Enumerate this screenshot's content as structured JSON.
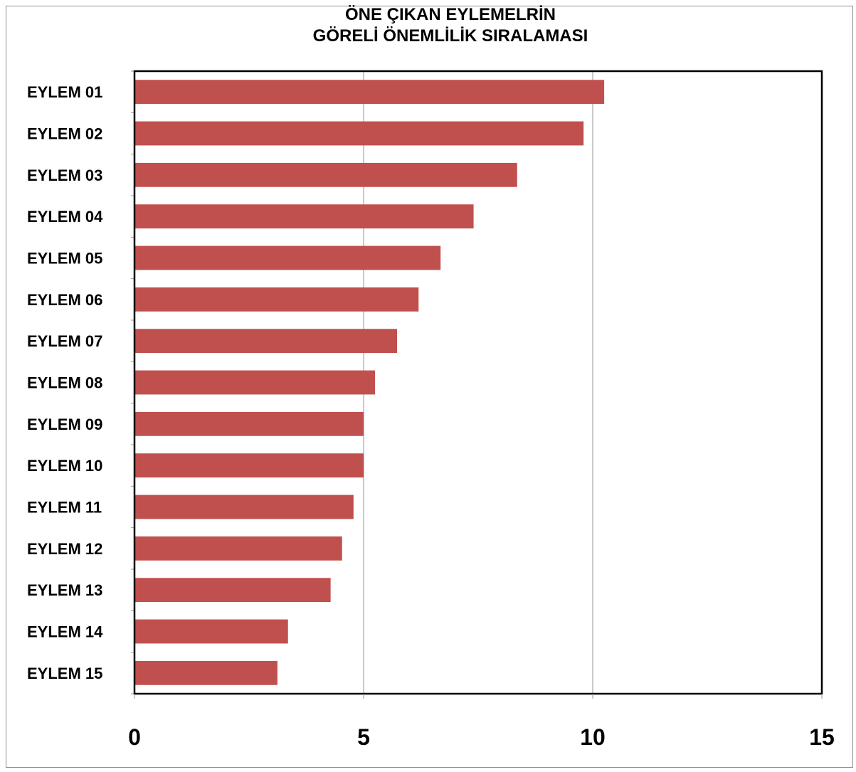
{
  "chart_data": {
    "type": "bar",
    "orientation": "horizontal",
    "title_lines": [
      "ÖNE ÇIKAN EYLEMELRİN",
      "GÖRELİ ÖNEMLİLİK SIRALAMASI"
    ],
    "categories": [
      "EYLEM 01",
      "EYLEM 02",
      "EYLEM 03",
      "EYLEM 04",
      "EYLEM 05",
      "EYLEM 06",
      "EYLEM 07",
      "EYLEM 08",
      "EYLEM 09",
      "EYLEM 10",
      "EYLEM 11",
      "EYLEM 12",
      "EYLEM 13",
      "EYLEM 14",
      "EYLEM 15"
    ],
    "values": [
      10.25,
      9.8,
      8.35,
      7.4,
      6.68,
      6.2,
      5.73,
      5.25,
      5.0,
      5.0,
      4.78,
      4.53,
      4.28,
      3.35,
      3.12
    ],
    "xlim": [
      0,
      15
    ],
    "xticks": [
      "0",
      "5",
      "10",
      "15"
    ],
    "xgrid": true,
    "legend": "none",
    "colors": {
      "bar": "#c0504d",
      "grid": "#969696",
      "axis": "#000000"
    }
  }
}
